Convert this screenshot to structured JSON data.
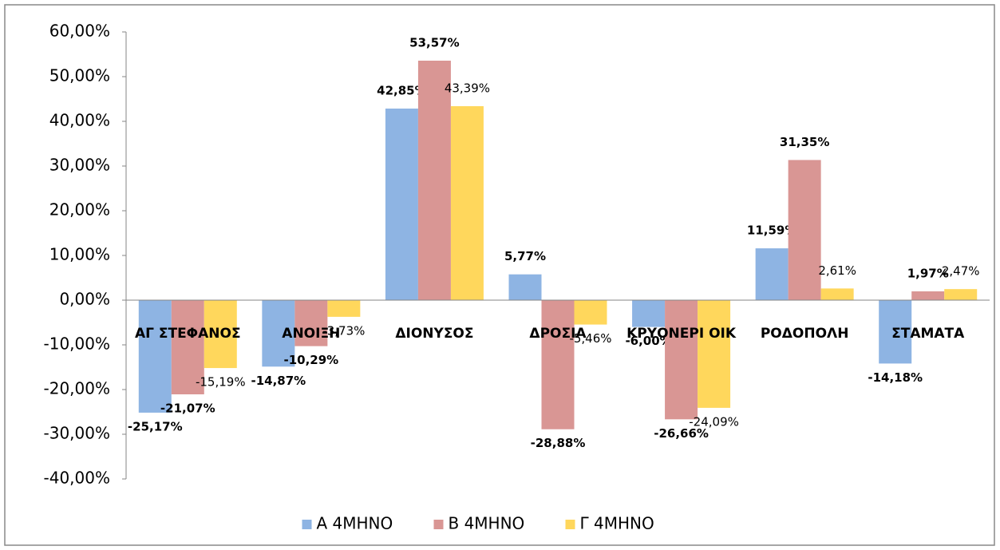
{
  "chart_data": {
    "type": "bar",
    "categories": [
      "ΑΓ ΣΤΕΦΑΝΟΣ",
      "ΑΝΟΙΞΗ",
      "ΔΙΟΝΥΣΟΣ",
      "ΔΡΟΣΙΑ",
      "ΚΡΥΟΝΕΡΙ ΟΙΚ",
      "ΡΟΔΟΠΟΛΗ",
      "ΣΤΑΜΑΤΑ"
    ],
    "series": [
      {
        "name": "Α 4ΜΗΝΟ",
        "color": "#8eb4e3",
        "values": [
          -25.17,
          -14.87,
          42.85,
          5.77,
          -6.0,
          11.59,
          -14.18
        ],
        "value_labels": [
          "-25,17%",
          "-14,87%",
          "42,85%",
          "5,77%",
          "-6,00%",
          "11,59%",
          "-14,18%"
        ]
      },
      {
        "name": "Β 4ΜΗΝΟ",
        "color": "#d99694",
        "values": [
          -21.07,
          -10.29,
          53.57,
          -28.88,
          -26.66,
          31.35,
          1.97
        ],
        "value_labels": [
          "-21,07%",
          "-10,29%",
          "53,57%",
          "-28,88%",
          "-26,66%",
          "31,35%",
          "1,97%"
        ]
      },
      {
        "name": "Γ 4ΜΗΝΟ",
        "color": "#ffd75c",
        "values": [
          -15.19,
          -3.73,
          43.39,
          -5.46,
          -24.09,
          2.61,
          2.47
        ],
        "value_labels": [
          "-15,19%",
          "-3,73%",
          "43,39%",
          "-5,46%",
          "-24,09%",
          "2,61%",
          "2,47%"
        ]
      }
    ],
    "ylim": [
      -40,
      60
    ],
    "yticks": [
      {
        "value": -40,
        "label": "-40,00%"
      },
      {
        "value": -30,
        "label": "-30,00%"
      },
      {
        "value": -20,
        "label": "-20,00%"
      },
      {
        "value": -10,
        "label": "-10,00%"
      },
      {
        "value": 0,
        "label": "0,00%"
      },
      {
        "value": 10,
        "label": "10,00%"
      },
      {
        "value": 20,
        "label": "20,00%"
      },
      {
        "value": 30,
        "label": "30,00%"
      },
      {
        "value": 40,
        "label": "40,00%"
      },
      {
        "value": 50,
        "label": "50,00%"
      },
      {
        "value": 60,
        "label": "60,00%"
      }
    ],
    "legend": "bottom"
  }
}
